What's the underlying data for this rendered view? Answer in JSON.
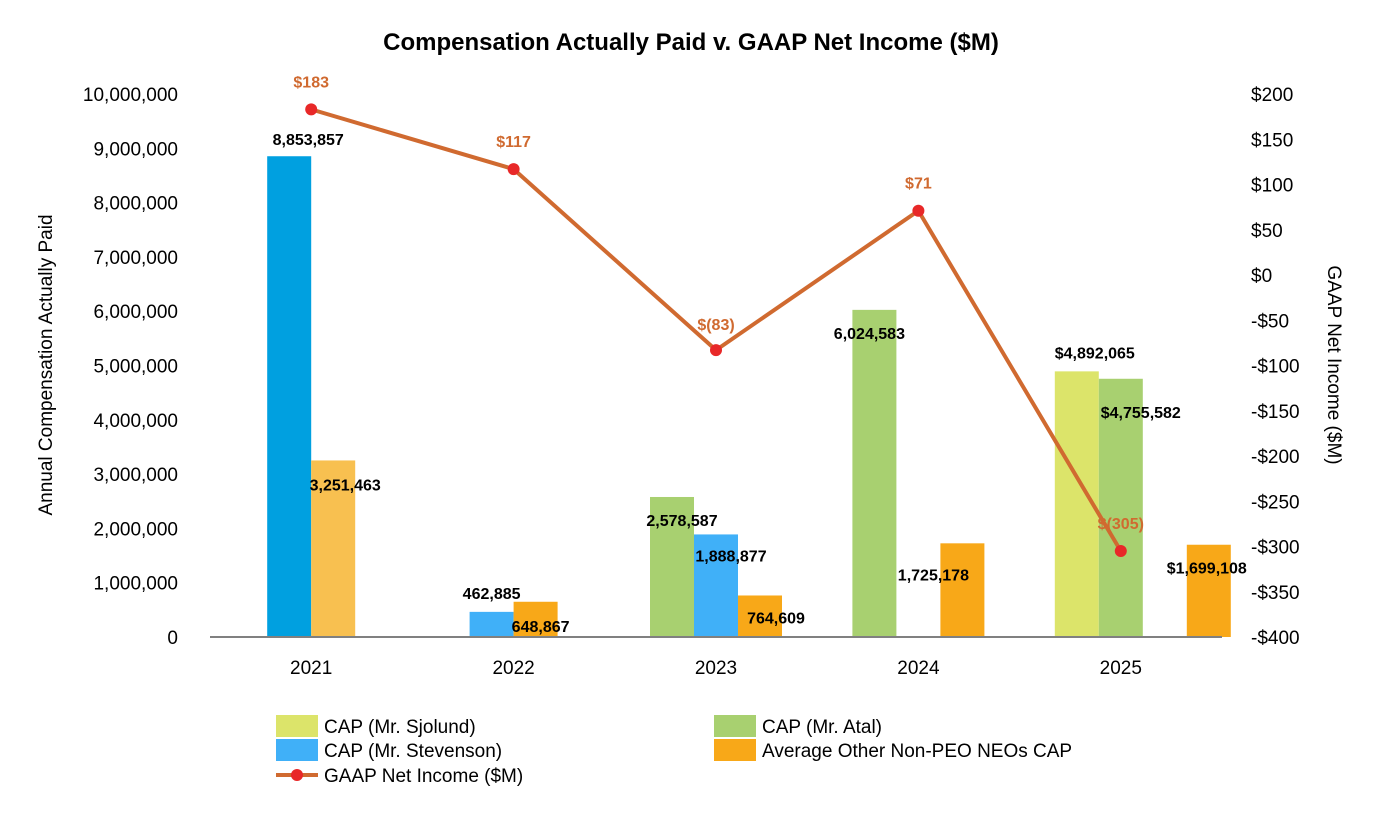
{
  "chart_data": {
    "type": "bar",
    "title": "Compensation Actually Paid v. GAAP Net Income ($M)",
    "ylabel": "Annual Compensation Actually Paid",
    "y2label": "GAAP Net Income ($M)",
    "categories": [
      "2021",
      "2022",
      "2023",
      "2024",
      "2025"
    ],
    "ylim": [
      0,
      10000000
    ],
    "y2lim": [
      -400,
      200
    ],
    "yticks": [
      {
        "value": 0,
        "label": "0"
      },
      {
        "value": 1000000,
        "label": "1,000,000"
      },
      {
        "value": 2000000,
        "label": "2,000,000"
      },
      {
        "value": 3000000,
        "label": "3,000,000"
      },
      {
        "value": 4000000,
        "label": "4,000,000"
      },
      {
        "value": 5000000,
        "label": "5,000,000"
      },
      {
        "value": 6000000,
        "label": "6,000,000"
      },
      {
        "value": 7000000,
        "label": "7,000,000"
      },
      {
        "value": 8000000,
        "label": "8,000,000"
      },
      {
        "value": 9000000,
        "label": "9,000,000"
      },
      {
        "value": 10000000,
        "label": "10,000,000"
      }
    ],
    "y2ticks": [
      {
        "value": 200,
        "label": "$200"
      },
      {
        "value": 150,
        "label": "$150"
      },
      {
        "value": 100,
        "label": "$100"
      },
      {
        "value": 50,
        "label": "$50"
      },
      {
        "value": 0,
        "label": "$0"
      },
      {
        "value": -50,
        "label": "-$50"
      },
      {
        "value": -100,
        "label": "-$100"
      },
      {
        "value": -150,
        "label": "-$150"
      },
      {
        "value": -200,
        "label": "-$200"
      },
      {
        "value": -250,
        "label": "-$250"
      },
      {
        "value": -300,
        "label": "-$300"
      },
      {
        "value": -350,
        "label": "-$350"
      },
      {
        "value": -400,
        "label": "-$400"
      }
    ],
    "series": [
      {
        "name": "CAP (Mr. Sjolund)",
        "color": "#dce46a",
        "values": [
          null,
          null,
          null,
          null,
          4892065
        ],
        "labels": [
          "",
          "",
          "",
          "",
          "$4,892,065"
        ]
      },
      {
        "name": "CAP (Mr. Atal)",
        "color": "#a8d070",
        "values": [
          null,
          null,
          2578587,
          6024583,
          4755582
        ],
        "labels": [
          "",
          "",
          "2,578,587",
          "6,024,583",
          "$4,755,582"
        ]
      },
      {
        "name": "CAP (Mr. Stevenson)",
        "color_2021": "#00a0e0",
        "color": "#40b0f8",
        "values": [
          8853857,
          462885,
          1888877,
          null,
          null
        ],
        "labels": [
          "8,853,857",
          "462,885",
          "1,888,877",
          "",
          ""
        ]
      },
      {
        "name": "Average Other Non-PEO NEOs CAP",
        "color_2021": "#f8c050",
        "color": "#f8a818",
        "values": [
          3251463,
          648867,
          764609,
          1725178,
          1699108
        ],
        "labels": [
          "3,251,463",
          "648,867",
          "764,609",
          "1,725,178",
          "$1,699,108"
        ]
      }
    ],
    "line": {
      "name": "GAAP Net Income ($M)",
      "color": "#d06a30",
      "marker_color": "#e82828",
      "values": [
        183,
        117,
        -83,
        71,
        -305
      ],
      "labels": [
        "$183",
        "$117",
        "$(83)",
        "$71",
        "$(305)"
      ]
    },
    "legend": {
      "position": "bottom",
      "items": [
        {
          "name": "CAP (Mr. Sjolund)",
          "kind": "box",
          "color": "#dce46a"
        },
        {
          "name": "CAP (Mr. Atal)",
          "kind": "box",
          "color": "#a8d070"
        },
        {
          "name": "CAP (Mr. Stevenson)",
          "kind": "box",
          "color": "#40b0f8"
        },
        {
          "name": "Average Other Non-PEO NEOs CAP",
          "kind": "box",
          "color": "#f8a818"
        },
        {
          "name": "GAAP Net Income ($M)",
          "kind": "line",
          "color": "#d06a30"
        }
      ]
    }
  }
}
